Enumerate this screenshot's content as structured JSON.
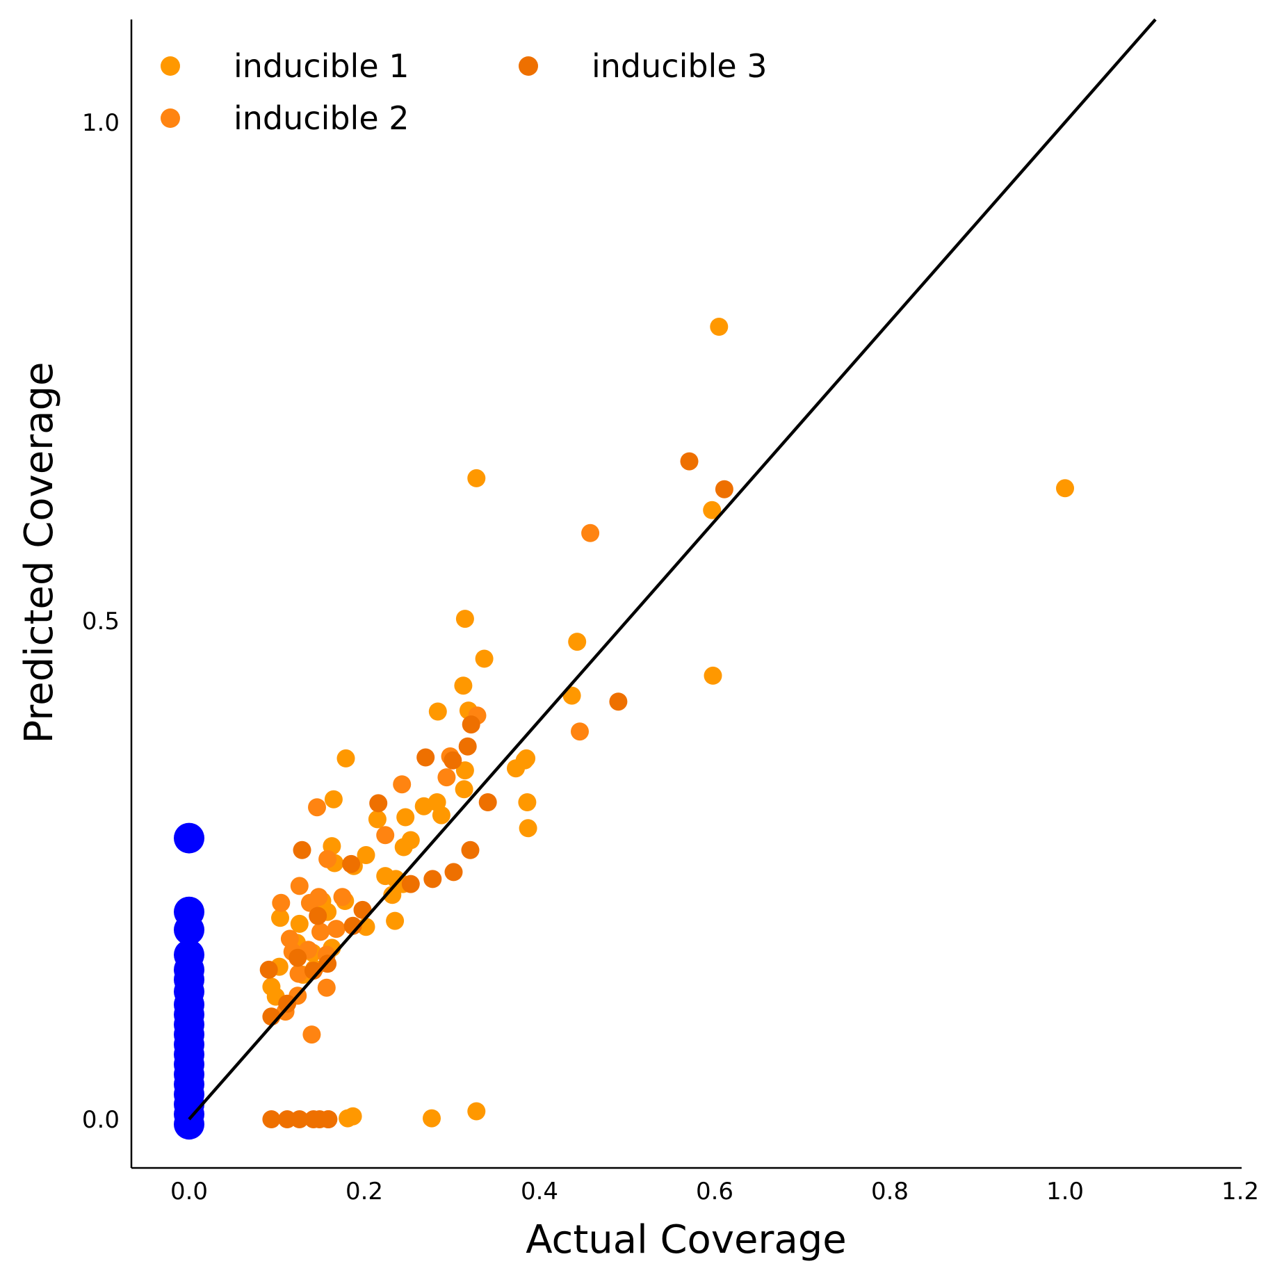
{
  "chart_data": {
    "type": "scatter",
    "title": "",
    "xlabel": "Actual Coverage",
    "ylabel": "Predicted Coverage",
    "xlim": [
      -0.067,
      1.2
    ],
    "ylim": [
      -0.05,
      1.1
    ],
    "x_ticks": [
      "0.0",
      "0.2",
      "0.4",
      "0.6",
      "0.8",
      "1.0",
      "1.2"
    ],
    "x_tick_values": [
      0.0,
      0.2,
      0.4,
      0.6,
      0.8,
      1.0,
      1.2
    ],
    "y_ticks": [
      "0.0",
      "0.5",
      "1.0"
    ],
    "y_tick_values": [
      0.0,
      0.5,
      1.0
    ],
    "grid": false,
    "legend_position": "top-left",
    "reference_line": {
      "from": [
        0,
        0
      ],
      "to": [
        1.2,
        1.2
      ],
      "color": "#000000"
    },
    "series": [
      {
        "name": "inducible 1",
        "color": "#FF9800",
        "points": [
          [
            0.605,
            0.795
          ],
          [
            0.328,
            0.643
          ],
          [
            1.0,
            0.633
          ],
          [
            0.597,
            0.611
          ],
          [
            0.315,
            0.502
          ],
          [
            0.337,
            0.462
          ],
          [
            0.313,
            0.435
          ],
          [
            0.284,
            0.409
          ],
          [
            0.319,
            0.41
          ],
          [
            0.598,
            0.445
          ],
          [
            0.443,
            0.479
          ],
          [
            0.437,
            0.425
          ],
          [
            0.179,
            0.362
          ],
          [
            0.385,
            0.362
          ],
          [
            0.383,
            0.36
          ],
          [
            0.373,
            0.352
          ],
          [
            0.315,
            0.35
          ],
          [
            0.314,
            0.331
          ],
          [
            0.165,
            0.321
          ],
          [
            0.283,
            0.318
          ],
          [
            0.268,
            0.314
          ],
          [
            0.386,
            0.318
          ],
          [
            0.288,
            0.305
          ],
          [
            0.247,
            0.303
          ],
          [
            0.215,
            0.301
          ],
          [
            0.387,
            0.292
          ],
          [
            0.253,
            0.28
          ],
          [
            0.245,
            0.273
          ],
          [
            0.163,
            0.274
          ],
          [
            0.202,
            0.265
          ],
          [
            0.166,
            0.257
          ],
          [
            0.188,
            0.254
          ],
          [
            0.224,
            0.244
          ],
          [
            0.236,
            0.241
          ],
          [
            0.244,
            0.236
          ],
          [
            0.232,
            0.225
          ],
          [
            0.178,
            0.219
          ],
          [
            0.152,
            0.219
          ],
          [
            0.158,
            0.208
          ],
          [
            0.104,
            0.202
          ],
          [
            0.126,
            0.196
          ],
          [
            0.202,
            0.193
          ],
          [
            0.235,
            0.199
          ],
          [
            0.123,
            0.177
          ],
          [
            0.163,
            0.172
          ],
          [
            0.141,
            0.167
          ],
          [
            0.103,
            0.153
          ],
          [
            0.13,
            0.145
          ],
          [
            0.143,
            0.151
          ],
          [
            0.094,
            0.133
          ],
          [
            0.099,
            0.123
          ],
          [
            0.181,
            0.001
          ],
          [
            0.187,
            0.003
          ],
          [
            0.277,
            0.001
          ],
          [
            0.328,
            0.008
          ]
        ]
      },
      {
        "name": "inducible 2",
        "color": "#FF8411",
        "points": [
          [
            0.458,
            0.588
          ],
          [
            0.446,
            0.389
          ],
          [
            0.329,
            0.405
          ],
          [
            0.298,
            0.364
          ],
          [
            0.243,
            0.336
          ],
          [
            0.146,
            0.313
          ],
          [
            0.294,
            0.343
          ],
          [
            0.224,
            0.285
          ],
          [
            0.158,
            0.261
          ],
          [
            0.126,
            0.234
          ],
          [
            0.175,
            0.223
          ],
          [
            0.138,
            0.217
          ],
          [
            0.105,
            0.217
          ],
          [
            0.148,
            0.223
          ],
          [
            0.168,
            0.191
          ],
          [
            0.15,
            0.188
          ],
          [
            0.115,
            0.181
          ],
          [
            0.157,
            0.165
          ],
          [
            0.118,
            0.168
          ],
          [
            0.136,
            0.17
          ],
          [
            0.125,
            0.146
          ],
          [
            0.157,
            0.132
          ],
          [
            0.14,
            0.085
          ],
          [
            0.11,
            0.108
          ],
          [
            0.124,
            0.124
          ]
        ]
      },
      {
        "name": "inducible 3",
        "color": "#EE7000",
        "points": [
          [
            0.571,
            0.66
          ],
          [
            0.611,
            0.632
          ],
          [
            0.49,
            0.419
          ],
          [
            0.322,
            0.396
          ],
          [
            0.318,
            0.374
          ],
          [
            0.27,
            0.363
          ],
          [
            0.301,
            0.36
          ],
          [
            0.216,
            0.317
          ],
          [
            0.341,
            0.318
          ],
          [
            0.321,
            0.27
          ],
          [
            0.129,
            0.27
          ],
          [
            0.185,
            0.256
          ],
          [
            0.302,
            0.248
          ],
          [
            0.278,
            0.241
          ],
          [
            0.253,
            0.236
          ],
          [
            0.198,
            0.21
          ],
          [
            0.147,
            0.204
          ],
          [
            0.187,
            0.194
          ],
          [
            0.158,
            0.156
          ],
          [
            0.124,
            0.162
          ],
          [
            0.091,
            0.15
          ],
          [
            0.094,
            0.103
          ],
          [
            0.112,
            0.116
          ],
          [
            0.142,
            0.149
          ],
          [
            0.094,
            0.0
          ],
          [
            0.112,
            0.0
          ],
          [
            0.126,
            0.0
          ],
          [
            0.142,
            0.0
          ],
          [
            0.159,
            0.0
          ],
          [
            0.149,
            0.0
          ],
          [
            0.159,
            0.0
          ]
        ]
      },
      {
        "name": "",
        "color": "#0000FF",
        "points": [
          [
            0.0,
            0.282
          ],
          [
            0.0,
            0.208
          ],
          [
            0.0,
            0.19
          ],
          [
            0.0,
            0.165
          ],
          [
            0.0,
            0.15
          ],
          [
            0.0,
            0.14
          ],
          [
            0.0,
            0.128
          ],
          [
            0.0,
            0.115
          ],
          [
            0.0,
            0.105
          ],
          [
            0.0,
            0.095
          ],
          [
            0.0,
            0.085
          ],
          [
            0.0,
            0.075
          ],
          [
            0.0,
            0.065
          ],
          [
            0.0,
            0.055
          ],
          [
            0.0,
            0.045
          ],
          [
            0.0,
            0.035
          ],
          [
            0.0,
            0.025
          ],
          [
            0.0,
            0.015
          ],
          [
            0.0,
            0.005
          ],
          [
            0.0,
            -0.005
          ]
        ]
      }
    ]
  }
}
